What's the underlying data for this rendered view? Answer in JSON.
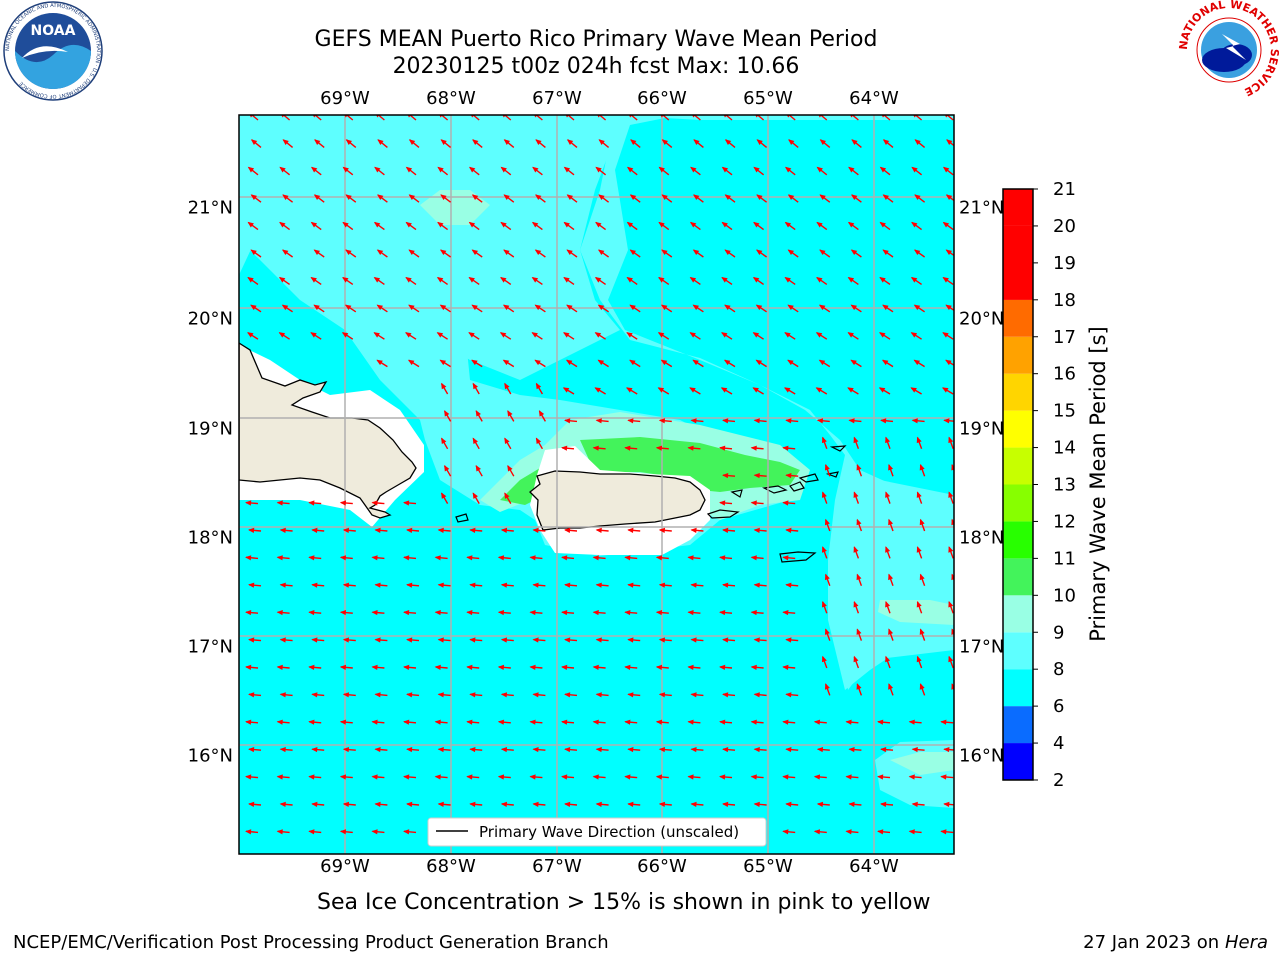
{
  "title_line1": "GEFS MEAN Puerto Rico Primary Wave Mean Period",
  "title_line2": "20230125 t00z 024h fcst   Max: 10.66",
  "lon_labels": [
    "69°W",
    "68°W",
    "67°W",
    "66°W",
    "65°W",
    "64°W"
  ],
  "lat_labels": [
    "21°N",
    "20°N",
    "19°N",
    "18°N",
    "17°N",
    "16°N"
  ],
  "legend_label": "Primary Wave Direction (unscaled)",
  "colorbar": {
    "title": "Primary Wave Mean Period [s]",
    "ticks": [
      "2",
      "4",
      "6",
      "8",
      "9",
      "10",
      "11",
      "12",
      "13",
      "14",
      "15",
      "16",
      "17",
      "18",
      "19",
      "20",
      "21"
    ],
    "colors": [
      "#0000ff",
      "#0a6cff",
      "#00ffff",
      "#5effff",
      "#99ffe4",
      "#43f35b",
      "#28ff00",
      "#87ff00",
      "#c7ff00",
      "#ffff00",
      "#ffd500",
      "#ffa200",
      "#ff6b00",
      "#ff3a00",
      "#ff0000"
    ]
  },
  "sea_ice_note": "Sea Ice Concentration > 15% is shown in pink to yellow",
  "footer_left": "NCEP/EMC/Verification Post Processing Product Generation Branch",
  "footer_date": "27 Jan 2023 on ",
  "footer_machine": "Hera",
  "logos": {
    "noaa_text": "NOAA",
    "noaa_ring": "NATIONAL OCEANIC AND ATMOSPHERIC ADMINISTRATION · U.S. DEPARTMENT OF COMMERCE",
    "nws_ring": "NATIONAL WEATHER SERVICE"
  },
  "field_colors": {
    "ocean_6_8": "#00ffff",
    "ocean_8_9": "#5effff",
    "ocean_9_10": "#99ffe4",
    "ocean_10_11": "#43f35b",
    "land": "#efebdc",
    "arrow": "#ff0000"
  }
}
